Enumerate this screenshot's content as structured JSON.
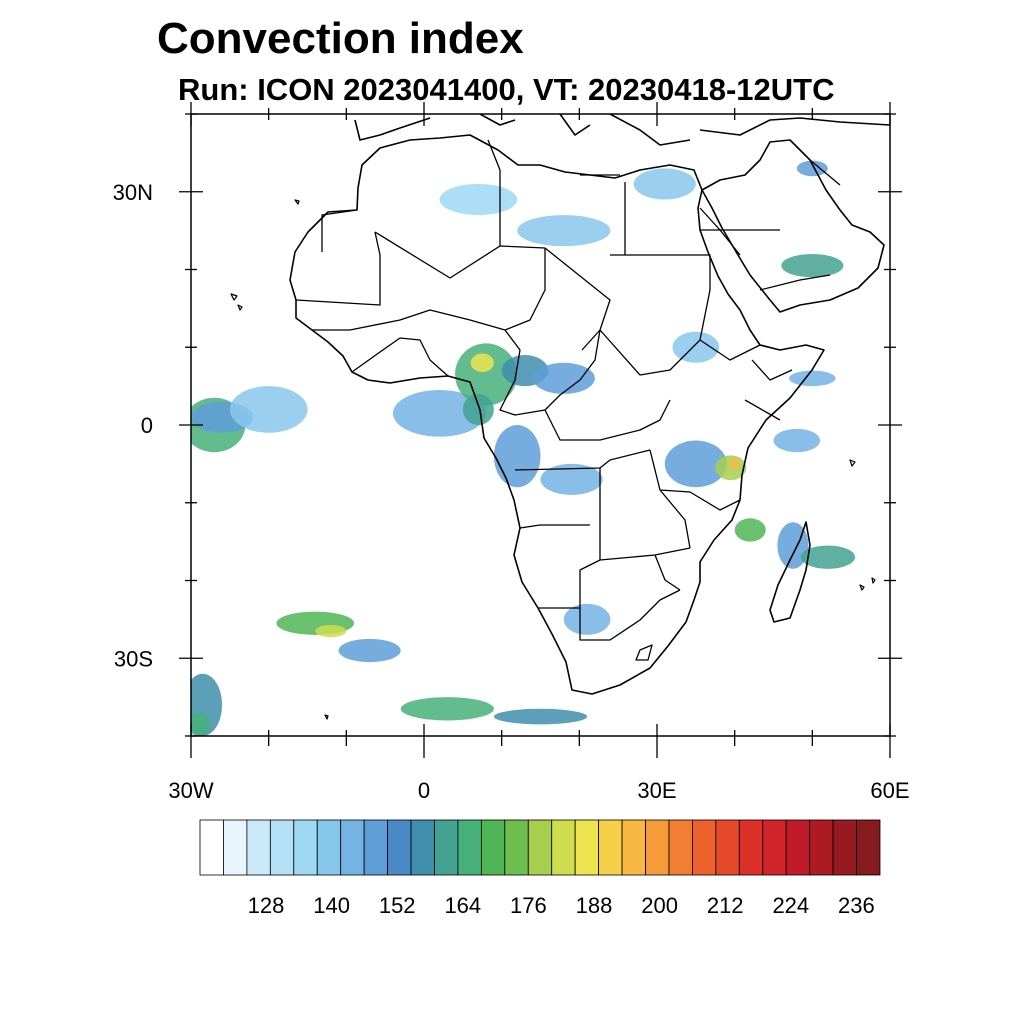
{
  "title": "Convection index",
  "subtitle": "Run: ICON 2023041400,  VT: 20230418-12UTC",
  "map": {
    "lon_range": [
      -30,
      60
    ],
    "lat_range": [
      -40,
      40
    ],
    "lat_ticks": [
      {
        "value": 30,
        "label": "30N"
      },
      {
        "value": 0,
        "label": "0"
      },
      {
        "value": -30,
        "label": "30S"
      }
    ],
    "lon_ticks": [
      {
        "value": -30,
        "label": "30W"
      },
      {
        "value": 0,
        "label": "0"
      },
      {
        "value": 30,
        "label": "30E"
      },
      {
        "value": 60,
        "label": "60E"
      }
    ],
    "minor_lat_ticks": [
      40,
      20,
      10,
      -10,
      -20,
      -40
    ],
    "minor_lon_ticks": [
      -20,
      -10,
      10,
      20,
      40,
      50
    ],
    "fields": [
      {
        "lon": -27,
        "lat": 0,
        "rx": 4,
        "ry": 3.5,
        "level": 170
      },
      {
        "lon": -26,
        "lat": 1,
        "rx": 4,
        "ry": 2,
        "level": 150
      },
      {
        "lon": -20,
        "lat": 2,
        "rx": 5,
        "ry": 3,
        "level": 135
      },
      {
        "lon": 2,
        "lat": 1.5,
        "rx": 6,
        "ry": 3,
        "level": 145
      },
      {
        "lon": 8,
        "lat": 6.5,
        "rx": 4,
        "ry": 4,
        "level": 175
      },
      {
        "lon": 7.5,
        "lat": 8,
        "rx": 1.5,
        "ry": 1.2,
        "level": 205
      },
      {
        "lon": 7,
        "lat": 2,
        "rx": 2,
        "ry": 2,
        "level": 165
      },
      {
        "lon": 13,
        "lat": 7,
        "rx": 3,
        "ry": 2,
        "level": 160
      },
      {
        "lon": 18,
        "lat": 6,
        "rx": 4,
        "ry": 2,
        "level": 150
      },
      {
        "lon": 12,
        "lat": -4,
        "rx": 3,
        "ry": 4,
        "level": 150
      },
      {
        "lon": 19,
        "lat": -7,
        "rx": 4,
        "ry": 2,
        "level": 140
      },
      {
        "lon": 18,
        "lat": 25,
        "rx": 6,
        "ry": 2,
        "level": 135
      },
      {
        "lon": 7,
        "lat": 29,
        "rx": 5,
        "ry": 2,
        "level": 130
      },
      {
        "lon": 31,
        "lat": 31,
        "rx": 4,
        "ry": 2,
        "level": 135
      },
      {
        "lon": 50,
        "lat": 20.5,
        "rx": 4,
        "ry": 1.5,
        "level": 165
      },
      {
        "lon": 50,
        "lat": 33,
        "rx": 2,
        "ry": 1,
        "level": 150
      },
      {
        "lon": 35,
        "lat": -5,
        "rx": 4,
        "ry": 3,
        "level": 150
      },
      {
        "lon": 39.5,
        "lat": -5.5,
        "rx": 2,
        "ry": 1.6,
        "level": 190
      },
      {
        "lon": 40,
        "lat": -5,
        "rx": 0.7,
        "ry": 0.7,
        "level": 215
      },
      {
        "lon": 42,
        "lat": -13.5,
        "rx": 2,
        "ry": 1.5,
        "level": 180
      },
      {
        "lon": 47.5,
        "lat": -15.5,
        "rx": 2,
        "ry": 3,
        "level": 150
      },
      {
        "lon": 52,
        "lat": -17,
        "rx": 3.5,
        "ry": 1.5,
        "level": 165
      },
      {
        "lon": 48,
        "lat": -2,
        "rx": 3,
        "ry": 1.5,
        "level": 140
      },
      {
        "lon": 50,
        "lat": 6,
        "rx": 3,
        "ry": 1,
        "level": 145
      },
      {
        "lon": 35,
        "lat": 10,
        "rx": 3,
        "ry": 2,
        "level": 135
      },
      {
        "lon": 21,
        "lat": -25,
        "rx": 3,
        "ry": 2,
        "level": 140
      },
      {
        "lon": -14,
        "lat": -25.5,
        "rx": 5,
        "ry": 1.5,
        "level": 180
      },
      {
        "lon": -12,
        "lat": -26.5,
        "rx": 2,
        "ry": 0.8,
        "level": 195
      },
      {
        "lon": -7,
        "lat": -29,
        "rx": 4,
        "ry": 1.5,
        "level": 150
      },
      {
        "lon": 3,
        "lat": -36.5,
        "rx": 6,
        "ry": 1.5,
        "level": 175
      },
      {
        "lon": 15,
        "lat": -37.5,
        "rx": 6,
        "ry": 1,
        "level": 160
      },
      {
        "lon": -28.5,
        "lat": -36,
        "rx": 2.5,
        "ry": 4,
        "level": 160
      },
      {
        "lon": -29,
        "lat": -38.5,
        "rx": 1.5,
        "ry": 1.5,
        "level": 175
      }
    ]
  },
  "colorbar": {
    "levels": [
      128,
      140,
      152,
      164,
      176,
      188,
      200,
      212,
      224,
      236
    ],
    "colors": [
      "#ffffff",
      "#e8f5fc",
      "#cbe9f8",
      "#b3e0f5",
      "#9ed8f3",
      "#88c7ec",
      "#74b3e4",
      "#5f9ed8",
      "#4a88c6",
      "#3f8eab",
      "#43a291",
      "#47b07a",
      "#4fb555",
      "#6dbd4f",
      "#a7cf4d",
      "#cedd4e",
      "#eee44f",
      "#f7d049",
      "#f9b844",
      "#f69b3a",
      "#f17e32",
      "#ec612c",
      "#e44a2a",
      "#dc3029",
      "#d0232a",
      "#c11a28",
      "#ad1a24",
      "#981a20",
      "#861a1e"
    ]
  }
}
